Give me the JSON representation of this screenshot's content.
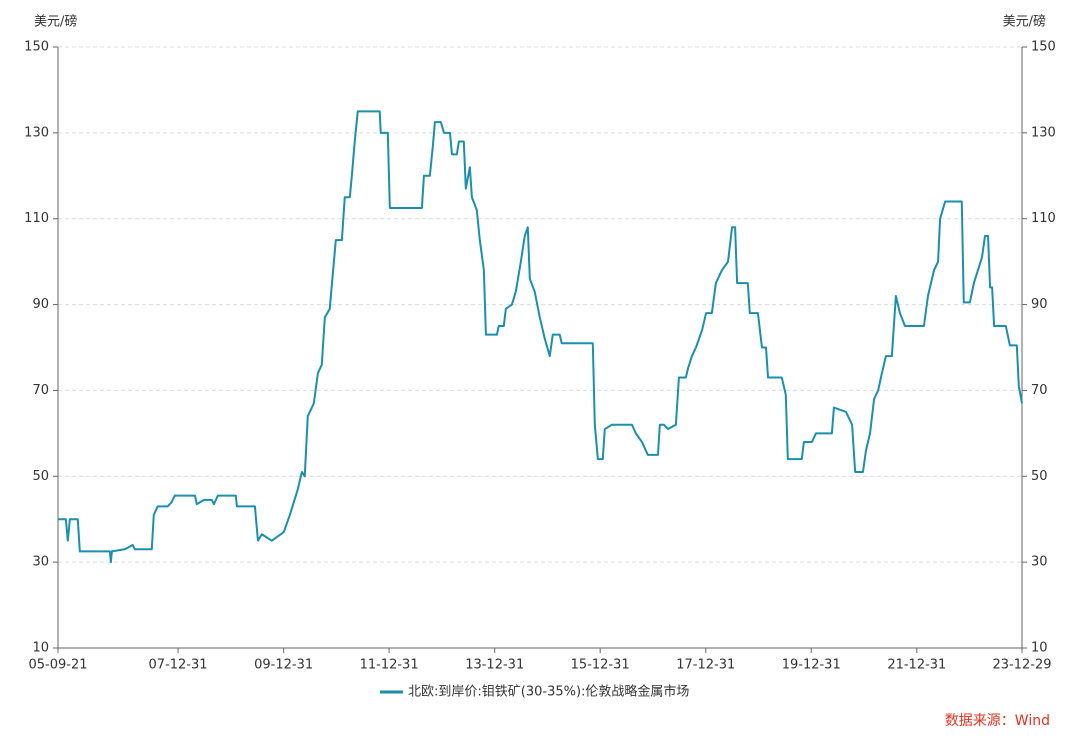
{
  "chart_data": {
    "type": "line",
    "y_label": "美元/磅",
    "y2_label": "美元/磅",
    "source": "数据来源：Wind",
    "xlim": [
      "05-09-21",
      "23-12-29"
    ],
    "xticks": [
      "05-09-21",
      "07-12-31",
      "09-12-31",
      "11-12-31",
      "13-12-31",
      "15-12-31",
      "17-12-31",
      "19-12-31",
      "21-12-31",
      "23-12-29"
    ],
    "ylim": [
      10,
      150
    ],
    "yticks": [
      10,
      30,
      50,
      70,
      90,
      110,
      130,
      150
    ],
    "y2lim": [
      10,
      150
    ],
    "y2ticks": [
      10,
      30,
      50,
      70,
      90,
      110,
      130,
      150
    ],
    "grid": true,
    "legend": "bottom",
    "x": [
      "05-09-21",
      "05-11-14",
      "05-11-28",
      "05-12-12",
      "06-02-05",
      "06-02-19",
      "06-09-15",
      "06-09-22",
      "06-09-29",
      "06-12-27",
      "07-02-20",
      "07-03-06",
      "07-07-02",
      "07-07-16",
      "07-08-12",
      "07-10-21",
      "07-11-17",
      "07-12-08",
      "08-04-26",
      "08-05-09",
      "08-06-27",
      "08-08-21",
      "08-09-04",
      "08-10-02",
      "09-02-03",
      "09-02-10",
      "09-06-15",
      "09-07-06",
      "09-08-02",
      "09-10-10",
      "10-01-01",
      "10-02-12",
      "10-04-08",
      "10-05-06",
      "10-05-26",
      "10-06-16",
      "10-07-28",
      "10-08-25",
      "10-09-21",
      "10-10-12",
      "10-11-15",
      "10-12-06",
      "10-12-27",
      "11-02-07",
      "11-02-27",
      "11-04-03",
      "11-04-17",
      "11-05-07",
      "11-05-28",
      "11-10-27",
      "11-11-03",
      "11-12-22",
      "12-01-05",
      "12-08-14",
      "12-08-28",
      "12-10-08",
      "12-10-29",
      "12-11-12",
      "12-12-23",
      "13-01-14",
      "13-02-24",
      "13-03-10",
      "13-04-13",
      "13-04-27",
      "13-05-31",
      "13-06-14",
      "13-07-12",
      "13-07-26",
      "13-08-29",
      "13-09-19",
      "13-10-17",
      "13-10-31",
      "14-01-15",
      "14-01-28",
      "14-03-04",
      "14-03-18",
      "14-04-29",
      "14-05-26",
      "14-06-30",
      "14-07-27",
      "14-08-17",
      "14-08-31",
      "14-10-04",
      "14-11-08",
      "14-12-13",
      "15-01-16",
      "15-02-06",
      "15-03-26",
      "15-04-09",
      "15-11-10",
      "15-11-24",
      "15-12-15",
      "16-01-18",
      "16-02-01",
      "16-03-21",
      "16-08-07",
      "16-09-03",
      "16-10-15",
      "16-11-25",
      "17-02-03",
      "17-02-16",
      "17-03-17",
      "17-04-14",
      "17-06-07",
      "17-06-28",
      "17-08-15",
      "17-08-29",
      "17-09-26",
      "17-10-24",
      "17-12-05",
      "18-01-02",
      "18-02-11",
      "18-03-11",
      "18-04-22",
      "18-06-03",
      "18-07-01",
      "18-07-22",
      "18-08-05",
      "18-10-18",
      "18-11-01",
      "18-12-27",
      "19-01-24",
      "19-02-21",
      "19-03-07",
      "19-06-10",
      "19-07-08",
      "19-07-22",
      "19-10-27",
      "19-11-10",
      "20-01-05",
      "20-02-02",
      "20-05-22",
      "20-06-05",
      "20-08-28",
      "20-10-09",
      "20-10-30",
      "20-12-23",
      "21-01-13",
      "21-02-10",
      "21-03-10",
      "21-04-07",
      "21-05-03",
      "21-05-31",
      "21-07-11",
      "21-08-08",
      "21-09-05",
      "21-10-10",
      "22-02-18",
      "22-03-18",
      "22-04-29",
      "22-05-27",
      "22-06-10",
      "22-07-15",
      "22-11-07",
      "22-11-21",
      "23-01-02",
      "23-01-30",
      "23-02-27",
      "23-03-27",
      "23-04-17",
      "23-05-08",
      "23-05-22",
      "23-06-05",
      "23-06-19",
      "23-09-08",
      "23-10-06",
      "23-11-23",
      "23-12-07",
      "23-12-29"
    ],
    "series": [
      {
        "name": "北欧:到岸价:钼铁矿(30-35%):伦敦战略金属市场",
        "color": "#1b8fae",
        "values": [
          40,
          40,
          35,
          40,
          40,
          32.5,
          32.5,
          30,
          32.5,
          33,
          34,
          33,
          33,
          41,
          43,
          43,
          44,
          45.5,
          45.5,
          43.5,
          44.5,
          44.5,
          43.5,
          45.5,
          45.5,
          43,
          43,
          35,
          36.5,
          35,
          37,
          41,
          47,
          51,
          50,
          64,
          67,
          74,
          76,
          87,
          89,
          97,
          105,
          105,
          115,
          115,
          120,
          128,
          135,
          135,
          130,
          130,
          112.5,
          112.5,
          120,
          120,
          127,
          132.5,
          132.5,
          130,
          130,
          125,
          125,
          128,
          128,
          117,
          122,
          115,
          112,
          105,
          98,
          83,
          83,
          85,
          85,
          89,
          90,
          93,
          100,
          106,
          108,
          96,
          93,
          87,
          82,
          78,
          83,
          83,
          81,
          81,
          62,
          54,
          54,
          61,
          62,
          62,
          60,
          58,
          55,
          55,
          62,
          62,
          61,
          62,
          73,
          73,
          75,
          78,
          80,
          84,
          88,
          88,
          95,
          98,
          100,
          108,
          108,
          95,
          95,
          88,
          88,
          80,
          80,
          73,
          73,
          69,
          54,
          54,
          58,
          58,
          60,
          60,
          66,
          65,
          62,
          51,
          51,
          56,
          60,
          68,
          70,
          74,
          78,
          78,
          92,
          88,
          85,
          85,
          92,
          98,
          100,
          110,
          114,
          114,
          90.5,
          90.5,
          95,
          98,
          101,
          106,
          106,
          94,
          94,
          85,
          85,
          80.5,
          80.5,
          71,
          67
        ]
      }
    ]
  }
}
